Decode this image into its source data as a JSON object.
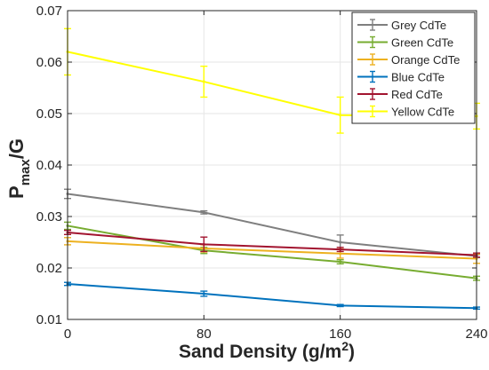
{
  "chart_data": {
    "type": "line",
    "xlabel": "Sand Density (g/m",
    "xlabel_sup": "2",
    "xlabel_tail": ")",
    "ylabel_main": "P",
    "ylabel_sub": "max",
    "ylabel_tail": "/G",
    "x": [
      0,
      80,
      160,
      240
    ],
    "xlim": [
      0,
      240
    ],
    "ylim": [
      0.01,
      0.07
    ],
    "xticks": [
      "0",
      "80",
      "160",
      "240"
    ],
    "yticks": [
      "0.01",
      "0.02",
      "0.03",
      "0.04",
      "0.05",
      "0.06",
      "0.07"
    ],
    "ytick_values": [
      0.01,
      0.02,
      0.03,
      0.04,
      0.05,
      0.06,
      0.07
    ],
    "grid": true,
    "legend_position": "top-right",
    "series": [
      {
        "name": "Grey CdTe",
        "color": "#7f7f7f",
        "values": [
          0.0344,
          0.0308,
          0.025,
          0.0223
        ],
        "errors": [
          0.0009,
          0.0003,
          0.0014,
          0.0003
        ]
      },
      {
        "name": "Green CdTe",
        "color": "#77ac30",
        "values": [
          0.0282,
          0.0234,
          0.0212,
          0.018
        ],
        "errors": [
          0.0007,
          0.0006,
          0.0004,
          0.0004
        ]
      },
      {
        "name": "Orange CdTe",
        "color": "#edb120",
        "values": [
          0.0252,
          0.0238,
          0.0228,
          0.0218
        ],
        "errors": [
          0.0007,
          0.0007,
          0.0009,
          0.0009
        ]
      },
      {
        "name": "Blue CdTe",
        "color": "#0072bd",
        "values": [
          0.0169,
          0.015,
          0.0127,
          0.0122
        ],
        "errors": [
          0.0003,
          0.0005,
          0.0002,
          0.0002
        ]
      },
      {
        "name": "Red CdTe",
        "color": "#a2142f",
        "values": [
          0.0269,
          0.0246,
          0.0236,
          0.0225
        ],
        "errors": [
          0.0004,
          0.0014,
          0.0004,
          0.0004
        ]
      },
      {
        "name": "Yellow CdTe",
        "color": "#ffff00",
        "values": [
          0.062,
          0.0562,
          0.0497,
          0.0495
        ],
        "errors": [
          0.0045,
          0.003,
          0.0035,
          0.0025
        ]
      }
    ]
  }
}
